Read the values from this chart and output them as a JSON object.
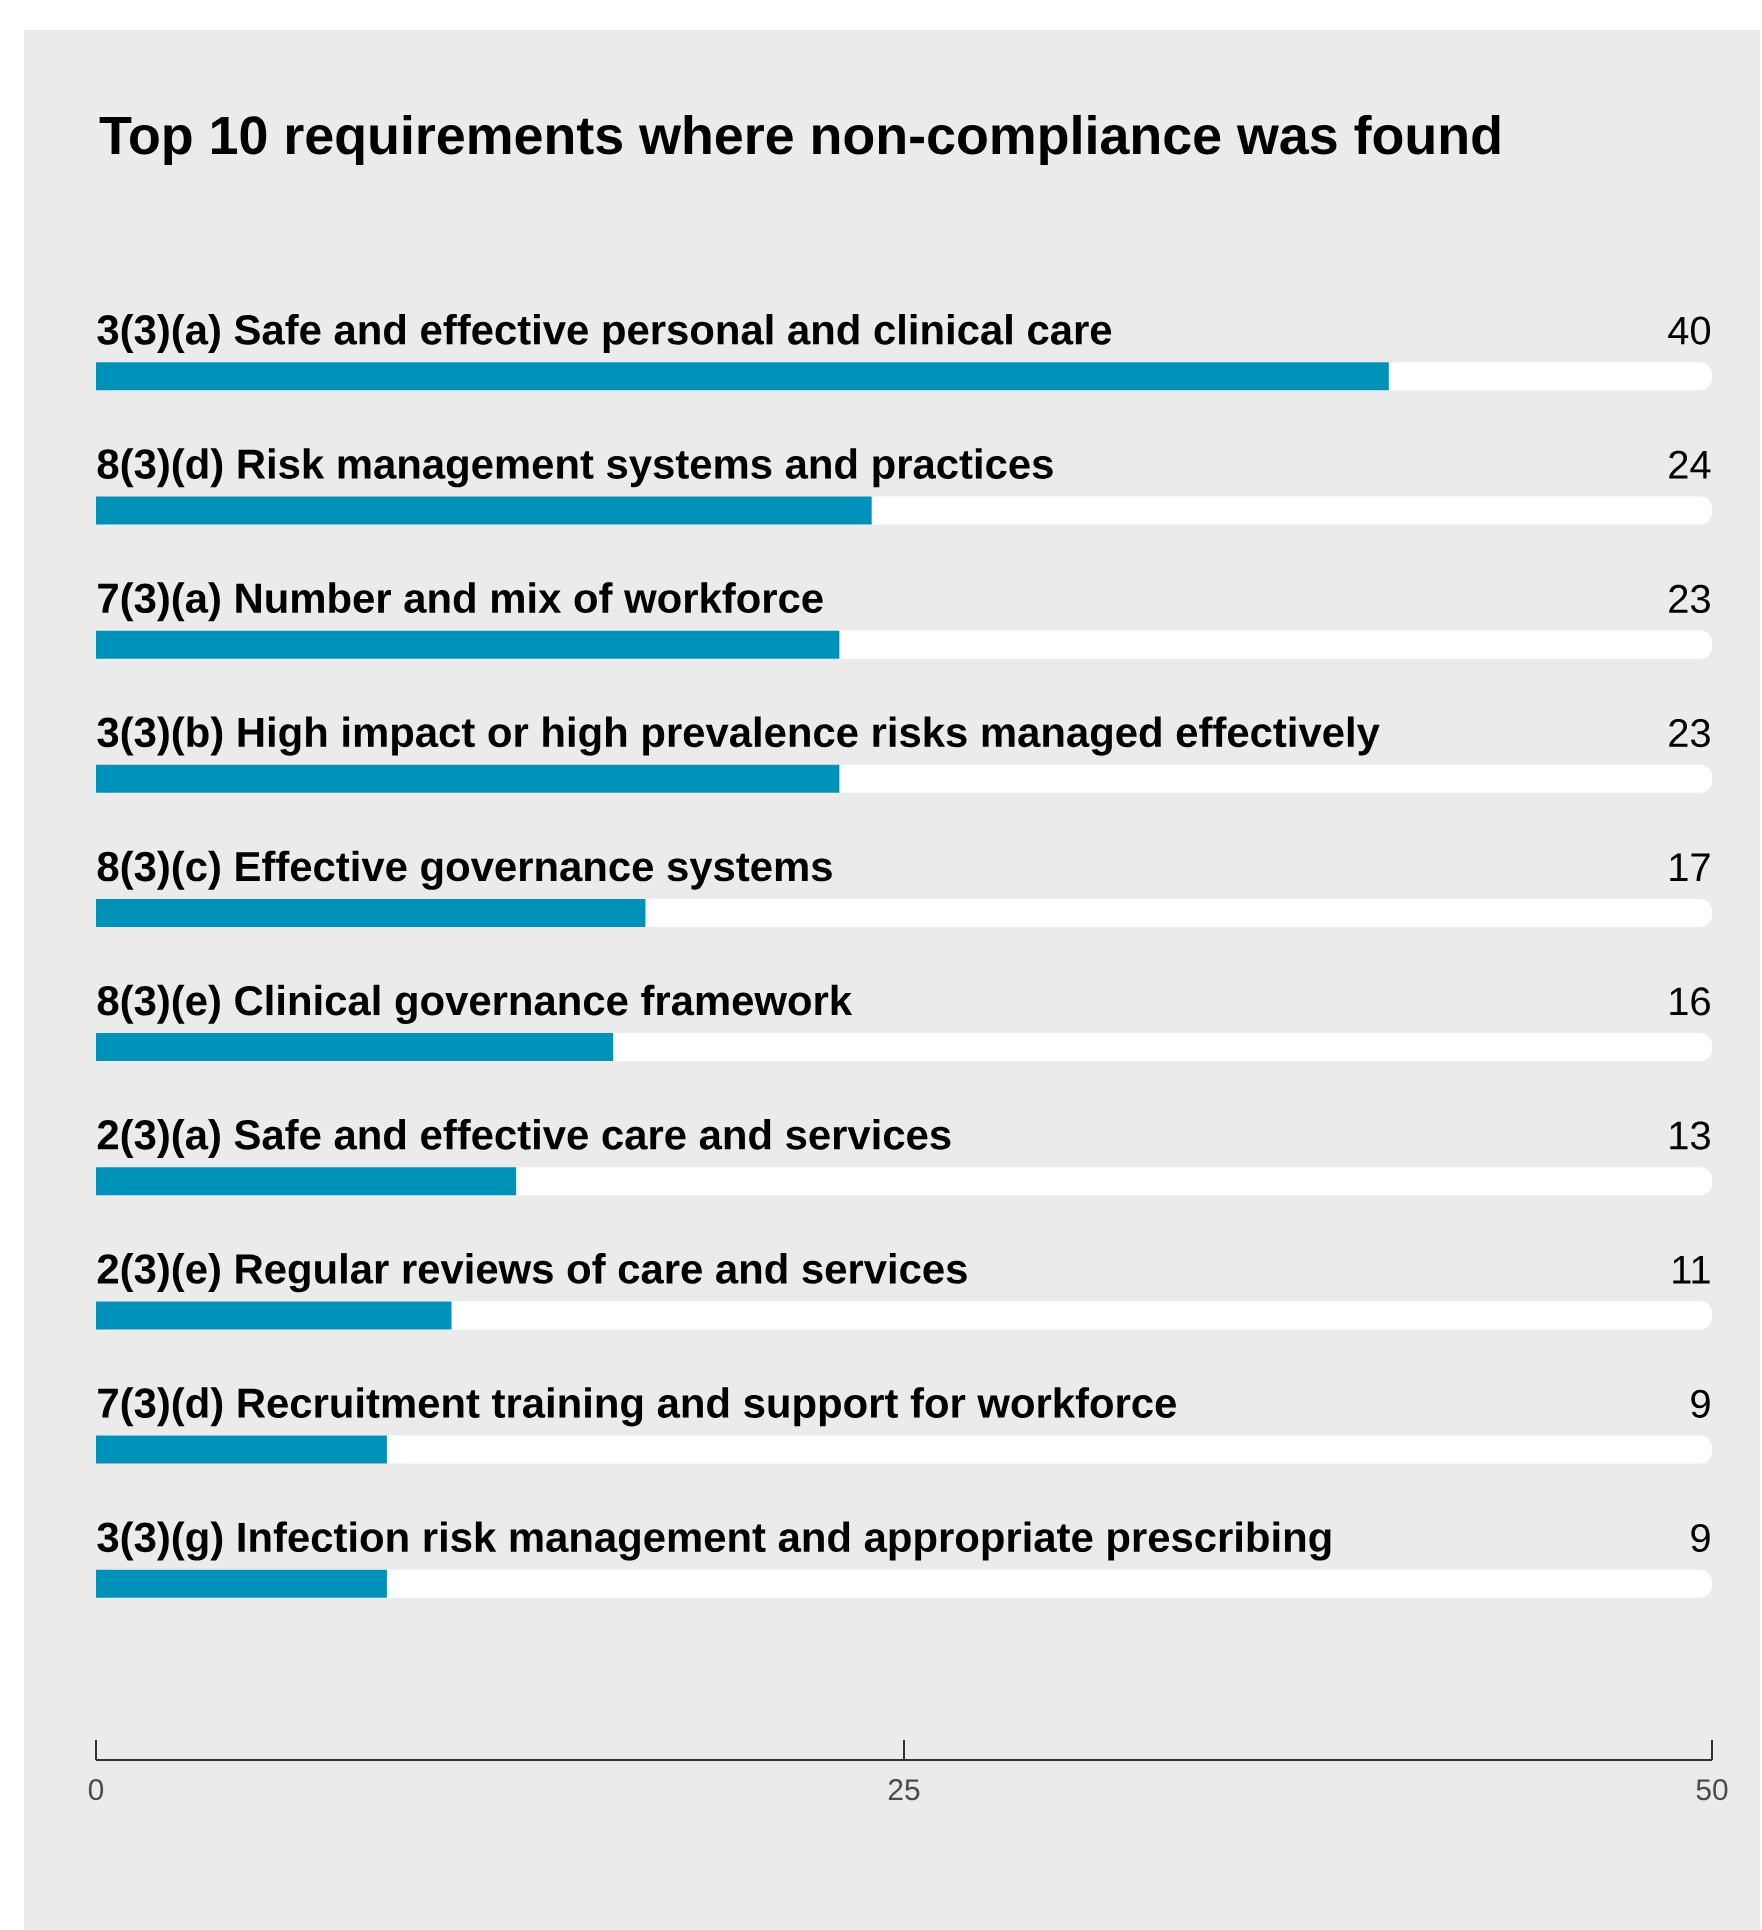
{
  "chart_data": {
    "type": "bar",
    "orientation": "horizontal",
    "title": "Top 10 requirements where non-compliance was found",
    "categories": [
      "3(3)(a) Safe and effective personal and clinical care",
      "8(3)(d) Risk management systems and practices",
      "7(3)(a) Number and mix of workforce",
      "3(3)(b) High impact or high prevalence risks managed effectively",
      "8(3)(c) Effective governance systems",
      "8(3)(e) Clinical governance framework",
      "2(3)(a) Safe and effective care and services",
      "2(3)(e) Regular reviews of care and services",
      "7(3)(d) Recruitment training and support for workforce",
      "3(3)(g) Infection risk management and appropriate prescribing"
    ],
    "values": [
      40,
      24,
      23,
      23,
      17,
      16,
      13,
      11,
      9,
      9
    ],
    "color": "#0091b8",
    "xlim": [
      0,
      50
    ],
    "xticks": [
      0,
      25,
      50
    ],
    "data_labels": true
  }
}
